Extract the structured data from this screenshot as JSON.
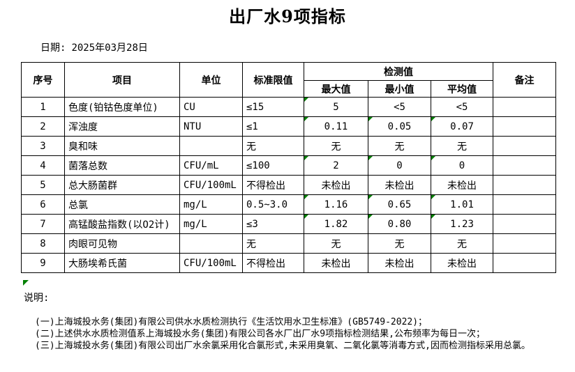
{
  "title": "出厂水9项指标",
  "date": {
    "label": "日期:",
    "value": "2025年03月28日"
  },
  "table": {
    "headers": {
      "seq": "序号",
      "item": "项目",
      "unit": "单位",
      "limit": "标准限值",
      "detection_group": "检测值",
      "max": "最大值",
      "min": "最小值",
      "avg": "平均值",
      "remark": "备注"
    },
    "rows": [
      {
        "seq": "1",
        "item": "色度(铂钴色度单位)",
        "unit": "CU",
        "limit": "≤15",
        "max": "5",
        "min": "<5",
        "avg": "<5",
        "remark": "",
        "flags": {
          "max": true,
          "min": false,
          "avg": false
        }
      },
      {
        "seq": "2",
        "item": "浑浊度",
        "unit": "NTU",
        "limit": "≤1",
        "max": "0.11",
        "min": "0.05",
        "avg": "0.07",
        "remark": "",
        "flags": {
          "max": true,
          "min": true,
          "avg": true
        }
      },
      {
        "seq": "3",
        "item": "臭和味",
        "unit": "",
        "limit": "无",
        "max": "无",
        "min": "无",
        "avg": "无",
        "remark": "",
        "flags": {
          "max": false,
          "min": false,
          "avg": false
        }
      },
      {
        "seq": "4",
        "item": "菌落总数",
        "unit": "CFU/mL",
        "limit": "≤100",
        "max": "2",
        "min": "0",
        "avg": "0",
        "remark": "",
        "flags": {
          "max": true,
          "min": true,
          "avg": true
        }
      },
      {
        "seq": "5",
        "item": "总大肠菌群",
        "unit": "CFU/100mL",
        "limit": "不得检出",
        "max": "未检出",
        "min": "未检出",
        "avg": "未检出",
        "remark": "",
        "flags": {
          "max": false,
          "min": false,
          "avg": false
        }
      },
      {
        "seq": "6",
        "item": "总氯",
        "unit": "mg/L",
        "limit": "0.5~3.0",
        "max": "1.16",
        "min": "0.65",
        "avg": "1.01",
        "remark": "",
        "flags": {
          "max": true,
          "min": true,
          "avg": true
        }
      },
      {
        "seq": "7",
        "item": "高锰酸盐指数(以O2计)",
        "unit": "mg/L",
        "limit": "≤3",
        "max": "1.82",
        "min": "0.80",
        "avg": "1.23",
        "remark": "",
        "flags": {
          "max": true,
          "min": true,
          "avg": true
        }
      },
      {
        "seq": "8",
        "item": "肉眼可见物",
        "unit": "",
        "limit": "无",
        "max": "无",
        "min": "无",
        "avg": "无",
        "remark": "",
        "flags": {
          "max": false,
          "min": false,
          "avg": false
        }
      },
      {
        "seq": "9",
        "item": "大肠埃希氏菌",
        "unit": "CFU/100mL",
        "limit": "不得检出",
        "max": "未检出",
        "min": "未检出",
        "avg": "未检出",
        "remark": "",
        "flags": {
          "max": false,
          "min": false,
          "avg": false
        }
      }
    ]
  },
  "notes": {
    "label": "说明:",
    "items": [
      "(一)上海城投水务(集团)有限公司供水水质检测执行《生活饮用水卫生标准》(GB5749-2022)；",
      "(二)上述供水水质检测值系上海城投水务(集团)有限公司各水厂出厂水9项指标检测结果,公布频率为每日一次；",
      "(三)上海城投水务(集团)有限公司出厂水余氯采用化合氯形式,未采用臭氧、二氧化氯等消毒方式,因而检测指标采用总氯。"
    ]
  },
  "colors": {
    "flag_green": "#008000",
    "border": "#000000",
    "text": "#000000",
    "background": "#ffffff"
  }
}
